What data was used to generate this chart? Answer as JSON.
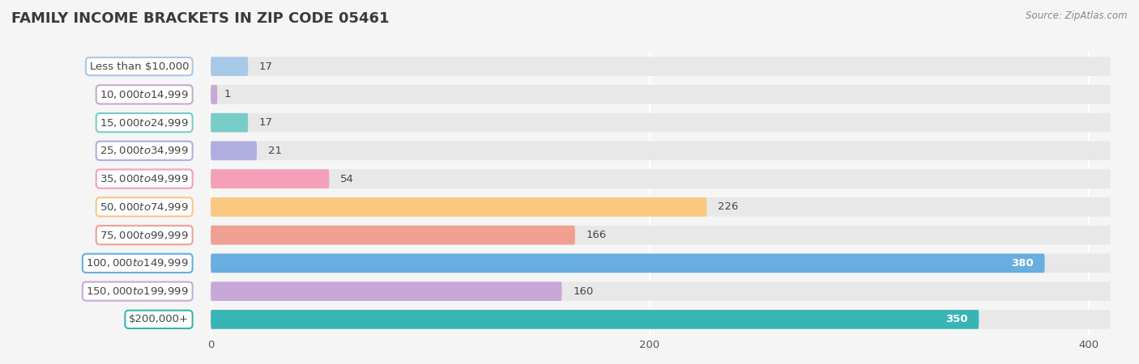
{
  "title": "FAMILY INCOME BRACKETS IN ZIP CODE 05461",
  "source": "Source: ZipAtlas.com",
  "categories": [
    "Less than $10,000",
    "$10,000 to $14,999",
    "$15,000 to $24,999",
    "$25,000 to $34,999",
    "$35,000 to $49,999",
    "$50,000 to $74,999",
    "$75,000 to $99,999",
    "$100,000 to $149,999",
    "$150,000 to $199,999",
    "$200,000+"
  ],
  "values": [
    17,
    1,
    17,
    21,
    54,
    226,
    166,
    380,
    160,
    350
  ],
  "colors": [
    "#a8c8e8",
    "#c8a8d4",
    "#78ccc8",
    "#b0aee0",
    "#f4a0b8",
    "#f8c880",
    "#f0a090",
    "#68aee0",
    "#c8a8d8",
    "#38b4b4"
  ],
  "label_colors": [
    "#a8c8e8",
    "#c8a8d4",
    "#78ccc8",
    "#b0aee0",
    "#f4a0b8",
    "#f8c880",
    "#f0a090",
    "#68aee0",
    "#c8a8d8",
    "#38b4b4"
  ],
  "value_white": [
    false,
    false,
    false,
    false,
    false,
    false,
    false,
    true,
    false,
    true
  ],
  "xlim": [
    0,
    410
  ],
  "xticks": [
    0,
    200,
    400
  ],
  "background_color": "#f5f5f5",
  "bar_bg_color": "#e8e8e8",
  "title_fontsize": 13,
  "label_fontsize": 9.5,
  "value_fontsize": 9.5,
  "bar_height": 0.68,
  "bar_gap": 0.32
}
